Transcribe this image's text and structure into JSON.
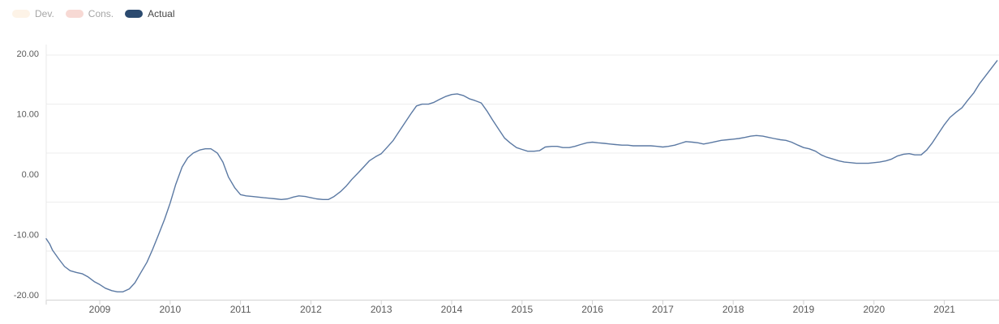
{
  "legend": {
    "items": [
      {
        "label": "Dev.",
        "color": "#fdf3e7",
        "active": false
      },
      {
        "label": "Cons.",
        "color": "#f7d9d4",
        "active": false
      },
      {
        "label": "Actual",
        "color": "#2b4a6f",
        "active": true
      }
    ]
  },
  "colors": {
    "line": "#5b79a3",
    "gridline": "#ededed",
    "axis_line": "#d2d2d2",
    "axis_text": "#595959",
    "background": "#ffffff"
  },
  "chart_data": {
    "type": "line",
    "title": "",
    "xlabel": "",
    "ylabel": "",
    "grid": "horizontal",
    "legend_position": "top-left",
    "xlim": [
      2008.23,
      2021.77
    ],
    "ylim": [
      -20,
      20
    ],
    "x_tick_labels": [
      "2009",
      "2010",
      "2011",
      "2012",
      "2013",
      "2014",
      "2015",
      "2016",
      "2017",
      "2018",
      "2019",
      "2020",
      "2021"
    ],
    "x_tick_values": [
      2009,
      2010,
      2011,
      2012,
      2013,
      2014,
      2015,
      2016,
      2017,
      2018,
      2019,
      2020,
      2021
    ],
    "y_tick_labels": [
      "20.00",
      "10.00",
      "0.00",
      "-10.00",
      "-20.00"
    ],
    "y_tick_values": [
      20,
      10,
      0,
      -10,
      -20
    ],
    "series": [
      {
        "name": "Actual",
        "color": "#5b79a3",
        "points": [
          [
            2008.23,
            -10.7
          ],
          [
            2008.29,
            -11.6
          ],
          [
            2008.33,
            -12.6
          ],
          [
            2008.42,
            -14.1
          ],
          [
            2008.5,
            -15.3
          ],
          [
            2008.58,
            -16.0
          ],
          [
            2008.67,
            -16.3
          ],
          [
            2008.75,
            -16.5
          ],
          [
            2008.83,
            -17.0
          ],
          [
            2008.92,
            -17.8
          ],
          [
            2009.0,
            -18.3
          ],
          [
            2009.08,
            -18.9
          ],
          [
            2009.17,
            -19.3
          ],
          [
            2009.25,
            -19.5
          ],
          [
            2009.33,
            -19.5
          ],
          [
            2009.42,
            -19.0
          ],
          [
            2009.5,
            -18.0
          ],
          [
            2009.58,
            -16.4
          ],
          [
            2009.67,
            -14.6
          ],
          [
            2009.75,
            -12.5
          ],
          [
            2009.83,
            -10.2
          ],
          [
            2009.92,
            -7.5
          ],
          [
            2010.0,
            -4.8
          ],
          [
            2010.08,
            -1.7
          ],
          [
            2010.17,
            1.2
          ],
          [
            2010.25,
            2.7
          ],
          [
            2010.33,
            3.5
          ],
          [
            2010.42,
            4.0
          ],
          [
            2010.5,
            4.2
          ],
          [
            2010.58,
            4.2
          ],
          [
            2010.67,
            3.5
          ],
          [
            2010.75,
            2.0
          ],
          [
            2010.83,
            -0.5
          ],
          [
            2010.92,
            -2.3
          ],
          [
            2011.0,
            -3.4
          ],
          [
            2011.08,
            -3.6
          ],
          [
            2011.17,
            -3.7
          ],
          [
            2011.25,
            -3.8
          ],
          [
            2011.33,
            -3.9
          ],
          [
            2011.42,
            -4.0
          ],
          [
            2011.5,
            -4.1
          ],
          [
            2011.58,
            -4.2
          ],
          [
            2011.67,
            -4.1
          ],
          [
            2011.75,
            -3.8
          ],
          [
            2011.83,
            -3.6
          ],
          [
            2011.92,
            -3.7
          ],
          [
            2012.0,
            -3.9
          ],
          [
            2012.08,
            -4.1
          ],
          [
            2012.17,
            -4.2
          ],
          [
            2012.25,
            -4.2
          ],
          [
            2012.33,
            -3.7
          ],
          [
            2012.42,
            -2.9
          ],
          [
            2012.5,
            -2.0
          ],
          [
            2012.58,
            -0.9
          ],
          [
            2012.67,
            0.2
          ],
          [
            2012.75,
            1.2
          ],
          [
            2012.83,
            2.2
          ],
          [
            2012.92,
            2.9
          ],
          [
            2013.0,
            3.4
          ],
          [
            2013.08,
            4.4
          ],
          [
            2013.17,
            5.6
          ],
          [
            2013.25,
            7.0
          ],
          [
            2013.33,
            8.4
          ],
          [
            2013.42,
            10.0
          ],
          [
            2013.5,
            11.3
          ],
          [
            2013.58,
            11.6
          ],
          [
            2013.67,
            11.6
          ],
          [
            2013.75,
            11.9
          ],
          [
            2013.83,
            12.4
          ],
          [
            2013.92,
            12.9
          ],
          [
            2014.0,
            13.2
          ],
          [
            2014.08,
            13.3
          ],
          [
            2014.17,
            13.0
          ],
          [
            2014.25,
            12.5
          ],
          [
            2014.33,
            12.2
          ],
          [
            2014.42,
            11.8
          ],
          [
            2014.5,
            10.5
          ],
          [
            2014.58,
            9.0
          ],
          [
            2014.67,
            7.4
          ],
          [
            2014.75,
            6.0
          ],
          [
            2014.83,
            5.2
          ],
          [
            2014.92,
            4.4
          ],
          [
            2015.0,
            4.1
          ],
          [
            2015.08,
            3.8
          ],
          [
            2015.17,
            3.8
          ],
          [
            2015.25,
            3.9
          ],
          [
            2015.33,
            4.5
          ],
          [
            2015.42,
            4.6
          ],
          [
            2015.5,
            4.6
          ],
          [
            2015.58,
            4.4
          ],
          [
            2015.67,
            4.4
          ],
          [
            2015.75,
            4.6
          ],
          [
            2015.83,
            4.9
          ],
          [
            2015.92,
            5.2
          ],
          [
            2016.0,
            5.3
          ],
          [
            2016.08,
            5.2
          ],
          [
            2016.17,
            5.1
          ],
          [
            2016.25,
            5.0
          ],
          [
            2016.33,
            4.9
          ],
          [
            2016.42,
            4.8
          ],
          [
            2016.5,
            4.8
          ],
          [
            2016.58,
            4.7
          ],
          [
            2016.67,
            4.7
          ],
          [
            2016.75,
            4.7
          ],
          [
            2016.83,
            4.7
          ],
          [
            2016.92,
            4.6
          ],
          [
            2017.0,
            4.5
          ],
          [
            2017.08,
            4.6
          ],
          [
            2017.17,
            4.8
          ],
          [
            2017.25,
            5.1
          ],
          [
            2017.33,
            5.4
          ],
          [
            2017.42,
            5.3
          ],
          [
            2017.5,
            5.2
          ],
          [
            2017.58,
            5.0
          ],
          [
            2017.67,
            5.2
          ],
          [
            2017.75,
            5.4
          ],
          [
            2017.83,
            5.6
          ],
          [
            2017.92,
            5.7
          ],
          [
            2018.0,
            5.8
          ],
          [
            2018.08,
            5.9
          ],
          [
            2018.17,
            6.1
          ],
          [
            2018.25,
            6.3
          ],
          [
            2018.33,
            6.4
          ],
          [
            2018.42,
            6.3
          ],
          [
            2018.5,
            6.1
          ],
          [
            2018.58,
            5.9
          ],
          [
            2018.67,
            5.7
          ],
          [
            2018.75,
            5.6
          ],
          [
            2018.83,
            5.3
          ],
          [
            2018.92,
            4.8
          ],
          [
            2019.0,
            4.4
          ],
          [
            2019.08,
            4.2
          ],
          [
            2019.17,
            3.8
          ],
          [
            2019.25,
            3.2
          ],
          [
            2019.33,
            2.8
          ],
          [
            2019.42,
            2.5
          ],
          [
            2019.5,
            2.2
          ],
          [
            2019.58,
            2.0
          ],
          [
            2019.67,
            1.9
          ],
          [
            2019.75,
            1.8
          ],
          [
            2019.83,
            1.8
          ],
          [
            2019.92,
            1.8
          ],
          [
            2020.0,
            1.9
          ],
          [
            2020.08,
            2.0
          ],
          [
            2020.17,
            2.2
          ],
          [
            2020.25,
            2.5
          ],
          [
            2020.33,
            3.0
          ],
          [
            2020.42,
            3.3
          ],
          [
            2020.5,
            3.4
          ],
          [
            2020.58,
            3.2
          ],
          [
            2020.67,
            3.2
          ],
          [
            2020.75,
            4.0
          ],
          [
            2020.83,
            5.2
          ],
          [
            2020.92,
            6.8
          ],
          [
            2021.0,
            8.2
          ],
          [
            2021.08,
            9.4
          ],
          [
            2021.17,
            10.3
          ],
          [
            2021.25,
            11.0
          ],
          [
            2021.33,
            12.2
          ],
          [
            2021.42,
            13.5
          ],
          [
            2021.5,
            15.0
          ],
          [
            2021.58,
            16.2
          ],
          [
            2021.67,
            17.6
          ],
          [
            2021.75,
            18.8
          ]
        ]
      }
    ]
  }
}
